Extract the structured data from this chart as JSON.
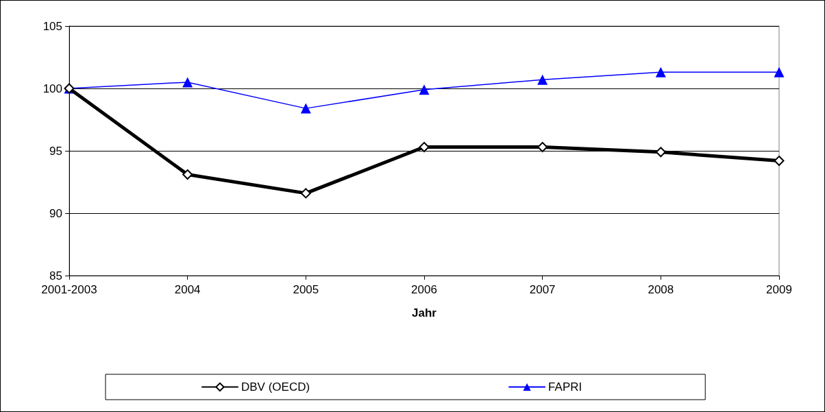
{
  "chart_data": {
    "type": "line",
    "xlabel": "Jahr",
    "categories": [
      "2001-2003",
      "2004",
      "2005",
      "2006",
      "2007",
      "2008",
      "2009"
    ],
    "series": [
      {
        "name": "DBV (OECD)",
        "color": "#000000",
        "marker": "diamond",
        "values": [
          100,
          93.1,
          91.6,
          95.3,
          95.3,
          94.9,
          94.2
        ]
      },
      {
        "name": "FAPRI",
        "color": "#0000ff",
        "marker": "triangle",
        "values": [
          100,
          100.5,
          98.4,
          99.9,
          100.7,
          101.3,
          101.3
        ]
      }
    ],
    "ylim": [
      85,
      105
    ],
    "yticks": [
      85,
      90,
      95,
      100,
      105
    ],
    "grid": "y",
    "legend": "bottom"
  }
}
